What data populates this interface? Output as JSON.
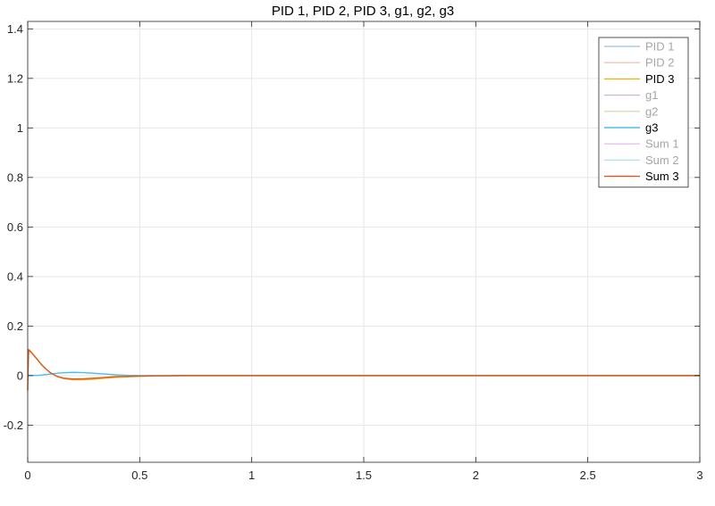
{
  "chart_data": {
    "type": "line",
    "title": "PID 1, PID 2, PID 3, g1, g2, g3",
    "xlabel": "",
    "ylabel": "",
    "xlim": [
      0,
      3
    ],
    "ylim": [
      -0.35,
      1.43
    ],
    "x_ticks": [
      0,
      0.5,
      1,
      1.5,
      2,
      2.5,
      3
    ],
    "x_tick_labels": [
      "0",
      "0.5",
      "1",
      "1.5",
      "2",
      "2.5",
      "3"
    ],
    "y_ticks": [
      -0.2,
      0,
      0.2,
      0.4,
      0.6,
      0.8,
      1,
      1.2,
      1.4
    ],
    "y_tick_labels": [
      "-0.2",
      "0",
      "0.2",
      "0.4",
      "0.6",
      "0.8",
      "1",
      "1.2",
      "1.4"
    ],
    "grid": true,
    "legend_position": "top-right",
    "series": [
      {
        "name": "PID 1",
        "color": "#0072BD",
        "visible": false,
        "x": [],
        "y": []
      },
      {
        "name": "PID 2",
        "color": "#D95319",
        "visible": false,
        "x": [],
        "y": []
      },
      {
        "name": "PID 3",
        "color": "#EDB120",
        "visible": true,
        "x": [
          0,
          0.005,
          0.01,
          0.02,
          0.04,
          0.06,
          0.08,
          0.1,
          0.13,
          0.16,
          0.2,
          0.25,
          0.3,
          0.35,
          0.4,
          0.5,
          0.6,
          0.7,
          0.8,
          1.0,
          1.5,
          2.0,
          2.5,
          3.0
        ],
        "y": [
          0.05,
          0.1,
          0.098,
          0.09,
          0.068,
          0.046,
          0.028,
          0.012,
          -0.003,
          -0.012,
          -0.017,
          -0.017,
          -0.014,
          -0.01,
          -0.007,
          -0.003,
          -0.001,
          0,
          0,
          0,
          0,
          0,
          0,
          0
        ]
      },
      {
        "name": "g1",
        "color": "#7E2F8E",
        "visible": false,
        "x": [],
        "y": []
      },
      {
        "name": "g2",
        "color": "#77AC30",
        "visible": false,
        "x": [],
        "y": []
      },
      {
        "name": "g3",
        "color": "#4DBEEE",
        "visible": true,
        "x": [
          0,
          0.05,
          0.1,
          0.15,
          0.2,
          0.25,
          0.3,
          0.35,
          0.4,
          0.45,
          0.5,
          0.6,
          0.7,
          0.8,
          1.0,
          1.5,
          2.0,
          2.5,
          3.0
        ],
        "y": [
          0,
          0.001,
          0.006,
          0.011,
          0.013,
          0.012,
          0.009,
          0.006,
          0.003,
          0.001,
          0,
          0,
          0,
          0,
          0,
          0,
          0,
          0,
          0
        ]
      },
      {
        "name": "Sum 1",
        "color": "#C44DD6",
        "visible": false,
        "x": [],
        "y": []
      },
      {
        "name": "Sum 2",
        "color": "#2CA6E0",
        "visible": false,
        "x": [],
        "y": []
      },
      {
        "name": "Sum 3",
        "color": "#E2581B",
        "visible": true,
        "x": [
          0,
          0.004,
          0.01,
          0.02,
          0.04,
          0.06,
          0.08,
          0.1,
          0.13,
          0.16,
          0.2,
          0.25,
          0.3,
          0.35,
          0.4,
          0.5,
          0.6,
          0.7,
          0.8,
          1.0,
          1.5,
          2.0,
          2.5,
          3.0
        ],
        "y": [
          -0.06,
          0.105,
          0.1,
          0.09,
          0.068,
          0.046,
          0.028,
          0.012,
          -0.003,
          -0.01,
          -0.014,
          -0.013,
          -0.01,
          -0.007,
          -0.004,
          -0.002,
          -0.001,
          0,
          0,
          0,
          0,
          0,
          0,
          0
        ]
      }
    ]
  }
}
